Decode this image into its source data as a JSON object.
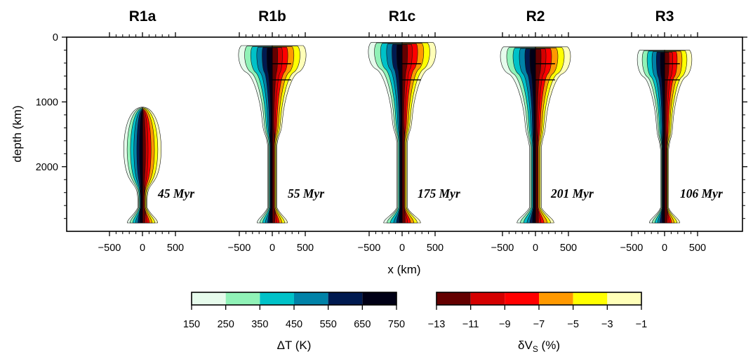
{
  "chart_data": {
    "type": "heatmap",
    "panels": [
      {
        "title": "R1a",
        "age": "45 Myr",
        "x_ticks": [
          -500,
          0,
          500
        ],
        "head_top_km": 1080,
        "head_width_km": 330,
        "stem_width_km": 70,
        "base_width_km": 230
      },
      {
        "title": "R1b",
        "age": "55 Myr",
        "x_ticks": [
          -500,
          0,
          500
        ],
        "head_top_km": 130,
        "head_width_km": 520,
        "stem_width_km": 70,
        "base_width_km": 230
      },
      {
        "title": "R1c",
        "age": "175 Myr",
        "x_ticks": [
          -500,
          0,
          500
        ],
        "head_top_km": 80,
        "head_width_km": 520,
        "stem_width_km": 80,
        "base_width_km": 280
      },
      {
        "title": "R2",
        "age": "201 Myr",
        "x_ticks": [
          -500,
          0,
          500
        ],
        "head_top_km": 150,
        "head_width_km": 540,
        "stem_width_km": 90,
        "base_width_km": 280
      },
      {
        "title": "R3",
        "age": "106 Myr",
        "x_ticks": [
          -500,
          0,
          500
        ],
        "head_top_km": 200,
        "head_width_km": 420,
        "stem_width_km": 60,
        "base_width_km": 230
      }
    ],
    "y_axis": {
      "label": "depth (km)",
      "ticks": [
        0,
        1000,
        2000
      ],
      "range": [
        0,
        2890
      ],
      "inverted": true
    },
    "x_axis": {
      "label": "x (km)"
    },
    "colorbars": [
      {
        "label": "ΔT (K)",
        "ticks": [
          "150",
          "250",
          "350",
          "450",
          "550",
          "650",
          "750"
        ],
        "colors": [
          "#e6fbec",
          "#90f2b7",
          "#00c2c8",
          "#0082a8",
          "#001a50",
          "#000016"
        ]
      },
      {
        "label_main": "δV",
        "label_sub": "S",
        "label_unit": " (%)",
        "ticks": [
          "−13",
          "−11",
          "−9",
          "−7",
          "−5",
          "−3",
          "−1"
        ],
        "colors": [
          "#640000",
          "#d40000",
          "#ff0000",
          "#ff9900",
          "#ffff00",
          "#ffffb8"
        ]
      }
    ]
  }
}
